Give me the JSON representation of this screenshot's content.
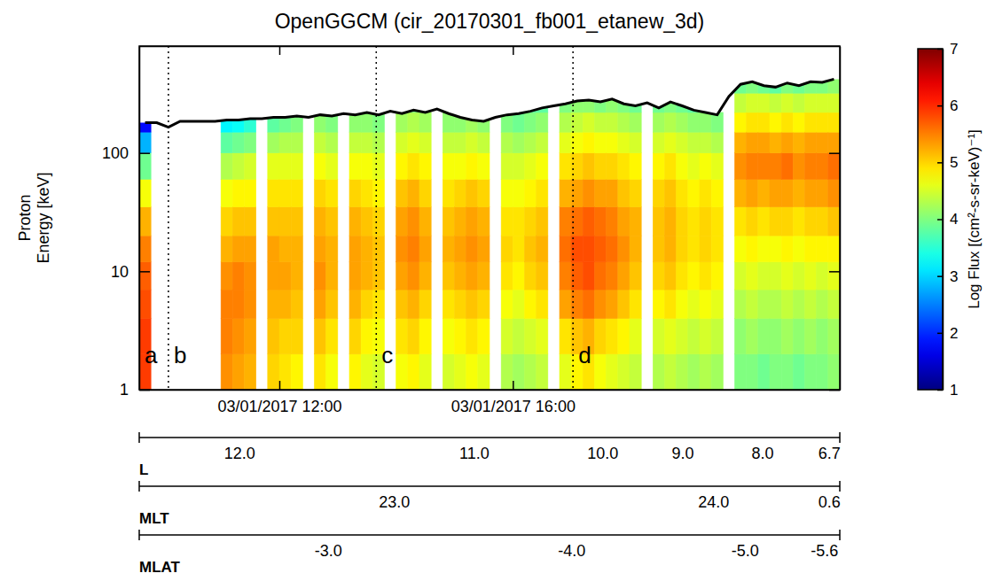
{
  "chart_data": {
    "type": "heatmap",
    "title": "OpenGGCM (cir_20170301_fb001_etanew_3d)",
    "y_label": "Proton Energy [keV]",
    "log": "y",
    "xlim": [
      9.6,
      21.6
    ],
    "xticks": [
      {
        "value": 12,
        "label": "03/01/2017 12:00"
      },
      {
        "value": 16,
        "label": "03/01/2017 16:00"
      }
    ],
    "ylim": [
      1,
      800
    ],
    "yticks": [
      1,
      10,
      100
    ],
    "x_edges": [
      9.6,
      9.8,
      10.0,
      10.2,
      10.4,
      10.6,
      10.8,
      11.0,
      11.2,
      11.4,
      11.6,
      11.8,
      12.0,
      12.2,
      12.4,
      12.6,
      12.8,
      13.0,
      13.2,
      13.4,
      13.6,
      13.8,
      14.0,
      14.2,
      14.4,
      14.6,
      14.8,
      15.0,
      15.2,
      15.4,
      15.6,
      15.8,
      16.0,
      16.2,
      16.4,
      16.6,
      16.8,
      17.0,
      17.2,
      17.4,
      17.6,
      17.8,
      18.0,
      18.2,
      18.4,
      18.6,
      18.8,
      19.0,
      19.2,
      19.4,
      19.6,
      19.8,
      20.0,
      20.2,
      20.4,
      20.6,
      20.8,
      21.0,
      21.2,
      21.4,
      21.6
    ],
    "energy_edges": [
      1,
      2,
      4,
      7,
      12,
      20,
      35,
      60,
      100,
      150,
      220,
      320,
      450
    ],
    "cells": [
      [
        5.9,
        5.9,
        5.8,
        5.7,
        5.5,
        5.2,
        4.7,
        3.9,
        2.8,
        1.8,
        null,
        null
      ],
      null,
      null,
      null,
      null,
      null,
      null,
      [
        5.4,
        5.5,
        5.5,
        5.4,
        5.2,
        5.0,
        4.7,
        4.3,
        3.8,
        3.2,
        null,
        null
      ],
      [
        5.3,
        5.4,
        5.5,
        5.5,
        5.3,
        5.1,
        4.8,
        4.4,
        3.9,
        3.3,
        null,
        null
      ],
      [
        5.2,
        5.3,
        5.4,
        5.4,
        5.3,
        5.1,
        4.8,
        4.5,
        4.0,
        3.5,
        null,
        null
      ],
      null,
      [
        5.0,
        5.1,
        5.2,
        5.3,
        5.3,
        5.1,
        4.9,
        4.6,
        4.2,
        3.8,
        null,
        null
      ],
      [
        4.9,
        5.0,
        5.2,
        5.3,
        5.2,
        5.1,
        4.9,
        4.6,
        4.3,
        3.9,
        null,
        null
      ],
      [
        4.8,
        5.0,
        5.1,
        5.2,
        5.2,
        5.1,
        4.9,
        4.6,
        4.3,
        4.0,
        null,
        null
      ],
      null,
      [
        4.9,
        5.1,
        5.3,
        5.4,
        5.3,
        5.2,
        5.0,
        4.7,
        4.4,
        4.1,
        null,
        null
      ],
      [
        4.7,
        4.9,
        5.1,
        5.2,
        5.2,
        5.1,
        4.9,
        4.6,
        4.3,
        4.0,
        null,
        null
      ],
      null,
      [
        4.8,
        5.0,
        5.2,
        5.3,
        5.3,
        5.2,
        5.0,
        4.7,
        4.4,
        4.1,
        null,
        null
      ],
      [
        4.6,
        4.8,
        5.0,
        5.2,
        5.2,
        5.1,
        4.9,
        4.7,
        4.4,
        4.1,
        null,
        null
      ],
      [
        4.5,
        4.7,
        4.9,
        5.1,
        5.1,
        5.0,
        4.8,
        4.6,
        4.3,
        4.0,
        null,
        null
      ],
      null,
      [
        4.7,
        4.9,
        5.1,
        5.3,
        5.4,
        5.3,
        5.1,
        4.8,
        4.5,
        4.2,
        null,
        null
      ],
      [
        4.8,
        5.0,
        5.2,
        5.4,
        5.5,
        5.4,
        5.2,
        4.9,
        4.6,
        4.3,
        4.0,
        null
      ],
      [
        4.6,
        4.8,
        5.0,
        5.2,
        5.3,
        5.2,
        5.0,
        4.8,
        4.5,
        4.2,
        null,
        null
      ],
      null,
      [
        4.5,
        4.7,
        4.9,
        5.1,
        5.2,
        5.1,
        4.9,
        4.7,
        4.4,
        4.1,
        null,
        null
      ],
      [
        4.6,
        4.8,
        5.0,
        5.2,
        5.3,
        5.2,
        5.0,
        4.7,
        4.4,
        4.1,
        null,
        null
      ],
      [
        4.7,
        4.9,
        5.1,
        5.3,
        5.4,
        5.3,
        5.1,
        4.8,
        4.5,
        4.2,
        null,
        null
      ],
      [
        4.6,
        4.8,
        5.0,
        5.2,
        5.3,
        5.2,
        5.0,
        4.7,
        4.4,
        4.1,
        null,
        null
      ],
      null,
      [
        4.3,
        4.5,
        4.7,
        4.9,
        5.0,
        4.9,
        4.7,
        4.5,
        4.3,
        4.0,
        null,
        null
      ],
      [
        4.2,
        4.4,
        4.6,
        4.8,
        4.9,
        4.9,
        4.7,
        4.5,
        4.2,
        3.9,
        null,
        null
      ],
      [
        4.3,
        4.5,
        4.8,
        5.0,
        5.1,
        5.0,
        4.8,
        4.6,
        4.3,
        4.0,
        3.8,
        null
      ],
      [
        4.4,
        4.6,
        4.9,
        5.1,
        5.2,
        5.1,
        4.9,
        4.7,
        4.4,
        4.1,
        3.8,
        null
      ],
      null,
      [
        4.6,
        4.9,
        5.3,
        5.5,
        5.6,
        5.5,
        5.2,
        4.9,
        4.6,
        4.3,
        4.0,
        null
      ],
      [
        4.8,
        5.1,
        5.5,
        5.7,
        5.8,
        5.6,
        5.3,
        5.0,
        4.7,
        4.4,
        4.1,
        null
      ],
      [
        4.9,
        5.2,
        5.6,
        5.8,
        5.8,
        5.7,
        5.4,
        5.1,
        4.8,
        4.5,
        4.1,
        null
      ],
      [
        4.7,
        5.0,
        5.4,
        5.6,
        5.7,
        5.6,
        5.3,
        5.0,
        4.7,
        4.4,
        4.0,
        null
      ],
      [
        4.6,
        4.9,
        5.3,
        5.5,
        5.6,
        5.5,
        5.3,
        5.0,
        4.7,
        4.4,
        4.1,
        null
      ],
      [
        4.5,
        4.8,
        5.1,
        5.3,
        5.4,
        5.3,
        5.1,
        4.9,
        4.6,
        4.3,
        4.0,
        null
      ],
      [
        4.4,
        4.6,
        4.9,
        5.1,
        5.2,
        5.2,
        5.0,
        4.8,
        4.5,
        4.2,
        3.9,
        null
      ],
      null,
      [
        4.3,
        4.5,
        4.8,
        5.0,
        5.1,
        5.1,
        5.0,
        4.8,
        4.5,
        4.2,
        3.9,
        null
      ],
      [
        4.4,
        4.6,
        4.9,
        5.1,
        5.2,
        5.2,
        5.1,
        4.9,
        4.6,
        4.3,
        4.0,
        null
      ],
      [
        4.3,
        4.5,
        4.7,
        4.9,
        5.0,
        5.0,
        4.9,
        4.7,
        4.5,
        4.2,
        3.9,
        null
      ],
      [
        4.2,
        4.4,
        4.6,
        4.8,
        4.9,
        4.9,
        4.8,
        4.6,
        4.4,
        4.1,
        3.8,
        null
      ],
      [
        4.3,
        4.5,
        4.7,
        4.9,
        5.0,
        5.0,
        4.9,
        4.7,
        4.4,
        4.1,
        null,
        null
      ],
      [
        4.2,
        4.4,
        4.6,
        4.8,
        4.9,
        4.9,
        4.8,
        4.6,
        4.3,
        4.0,
        null,
        null
      ],
      null,
      [
        4.0,
        4.1,
        4.3,
        4.5,
        4.7,
        4.9,
        5.2,
        5.4,
        5.2,
        4.8,
        4.4,
        3.9
      ],
      [
        4.0,
        4.2,
        4.4,
        4.6,
        4.8,
        5.0,
        5.3,
        5.5,
        5.3,
        4.9,
        4.5,
        4.0
      ],
      [
        3.9,
        4.1,
        4.3,
        4.5,
        4.7,
        4.9,
        5.2,
        5.5,
        5.3,
        4.9,
        4.5,
        3.9
      ],
      [
        4.0,
        4.1,
        4.3,
        4.5,
        4.7,
        5.0,
        5.3,
        5.5,
        5.2,
        4.8,
        4.4,
        3.8
      ],
      [
        4.0,
        4.2,
        4.4,
        4.6,
        4.8,
        5.0,
        5.3,
        5.6,
        5.3,
        4.9,
        4.5,
        4.0
      ],
      [
        3.9,
        4.1,
        4.3,
        4.5,
        4.7,
        4.9,
        5.2,
        5.4,
        5.2,
        4.8,
        4.4,
        3.9
      ],
      [
        4.0,
        4.2,
        4.4,
        4.6,
        4.8,
        5.0,
        5.3,
        5.5,
        5.3,
        4.9,
        4.5,
        4.0
      ],
      [
        4.0,
        4.1,
        4.3,
        4.5,
        4.8,
        5.0,
        5.3,
        5.5,
        5.3,
        4.9,
        4.5,
        4.0
      ],
      [
        4.1,
        4.2,
        4.4,
        4.6,
        4.8,
        5.1,
        5.4,
        5.6,
        5.3,
        4.9,
        4.5,
        4.1
      ]
    ],
    "boundary": {
      "x": [
        9.7,
        9.9,
        10.1,
        10.3,
        10.5,
        10.7,
        10.9,
        11.1,
        11.3,
        11.5,
        11.7,
        11.9,
        12.1,
        12.3,
        12.5,
        12.7,
        12.9,
        13.1,
        13.3,
        13.5,
        13.7,
        13.9,
        14.1,
        14.3,
        14.5,
        14.7,
        14.9,
        15.1,
        15.3,
        15.5,
        15.7,
        15.9,
        16.1,
        16.3,
        16.5,
        16.7,
        16.9,
        17.1,
        17.3,
        17.5,
        17.7,
        17.9,
        18.1,
        18.3,
        18.5,
        18.7,
        18.9,
        19.1,
        19.3,
        19.5,
        19.7,
        19.9,
        20.1,
        20.3,
        20.5,
        20.7,
        20.9,
        21.1,
        21.3,
        21.5
      ],
      "values": [
        180,
        180,
        165,
        185,
        185,
        185,
        185,
        190,
        190,
        195,
        195,
        200,
        200,
        205,
        200,
        210,
        205,
        215,
        210,
        220,
        210,
        225,
        215,
        230,
        220,
        235,
        215,
        200,
        190,
        185,
        200,
        210,
        215,
        225,
        240,
        250,
        260,
        275,
        280,
        270,
        285,
        260,
        250,
        265,
        240,
        270,
        250,
        230,
        220,
        210,
        300,
        380,
        400,
        370,
        360,
        390,
        370,
        400,
        395,
        420
      ]
    },
    "markers": [
      {
        "label": "a",
        "x": 9.6
      },
      {
        "label": "b",
        "x": 10.1
      },
      {
        "label": "c",
        "x": 13.66
      },
      {
        "label": "d",
        "x": 17.03
      }
    ],
    "aux_axes": [
      {
        "name": "L",
        "ticks": [
          {
            "value": 11.32,
            "label": "12.0"
          },
          {
            "value": 15.34,
            "label": "11.0"
          },
          {
            "value": 17.54,
            "label": "10.0"
          },
          {
            "value": 18.91,
            "label": "9.0"
          },
          {
            "value": 20.28,
            "label": "8.0"
          },
          {
            "value": 21.42,
            "label": "6.7"
          }
        ]
      },
      {
        "name": "MLT",
        "ticks": [
          {
            "value": 13.97,
            "label": "23.0"
          },
          {
            "value": 19.44,
            "label": "24.0"
          },
          {
            "value": 21.42,
            "label": "0.6"
          }
        ]
      },
      {
        "name": "MLAT",
        "ticks": [
          {
            "value": 12.84,
            "label": "-3.0"
          },
          {
            "value": 17.01,
            "label": "-4.0"
          },
          {
            "value": 19.98,
            "label": "-5.0"
          },
          {
            "value": 21.34,
            "label": "-5.6"
          }
        ]
      }
    ],
    "colorbar": {
      "label": "Log Flux [(cm²-s-sr-keV)⁻¹]",
      "range": [
        1,
        7
      ],
      "ticks": [
        1,
        2,
        3,
        4,
        5,
        6,
        7
      ]
    }
  }
}
